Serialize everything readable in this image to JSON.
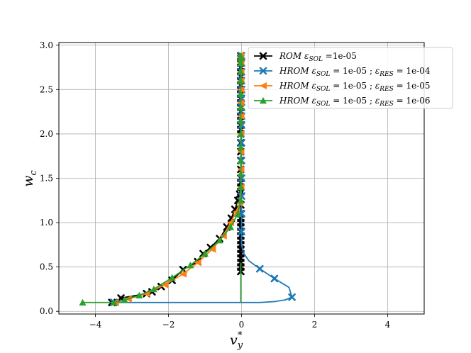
{
  "chart_data": {
    "type": "line",
    "xlabel": "v",
    "xlabel_sub": "y",
    "xlabel_sup": "*",
    "ylabel": "w",
    "ylabel_sub": "c",
    "xlim": [
      -5,
      5
    ],
    "ylim": [
      -0.03,
      3.03
    ],
    "xticks": [
      -4,
      -2,
      0,
      2,
      4
    ],
    "yticks": [
      0.0,
      0.5,
      1.0,
      1.5,
      2.0,
      2.5,
      3.0
    ],
    "xtick_labels": [
      "−4",
      "−2",
      "0",
      "2",
      "4"
    ],
    "ytick_labels": [
      "0.0",
      "0.5",
      "1.0",
      "1.5",
      "2.0",
      "2.5",
      "3.0"
    ],
    "grid": true,
    "legend_position": "top-right",
    "series": [
      {
        "name": "ROM εSOL =1e-05",
        "legend": {
          "model": "ROM",
          "parts": [
            {
              "eps": "SOL",
              "eq": " =1e-05"
            }
          ]
        },
        "color": "#000000",
        "marker": "x",
        "x": [
          -3.55,
          -3.5,
          -3.3,
          -2.6,
          -2.45,
          -2.2,
          -1.9,
          -1.6,
          -1.2,
          -1.05,
          -0.85,
          -0.6,
          -0.4,
          -0.28,
          -0.18,
          -0.1,
          -0.05,
          -0.02,
          -0.02,
          -0.02,
          -0.02,
          -0.02,
          -0.02,
          -0.02,
          -0.02,
          -0.02,
          -0.02,
          -0.02,
          -0.02,
          -0.02,
          -0.02,
          -0.02,
          -0.02,
          -0.02,
          -0.02,
          -0.02,
          -0.02,
          -0.02,
          -0.02,
          -0.02,
          -0.02,
          -0.02,
          -0.02,
          -0.02,
          -0.02,
          -0.02,
          -0.02,
          -0.02,
          -0.02,
          -0.02,
          -0.02,
          -0.02,
          -0.02,
          -0.02,
          -0.02,
          -0.02,
          -0.02,
          -0.02,
          -0.02
        ],
        "y": [
          0.1,
          0.1,
          0.15,
          0.2,
          0.22,
          0.28,
          0.35,
          0.47,
          0.56,
          0.65,
          0.72,
          0.82,
          0.95,
          1.05,
          1.15,
          1.25,
          1.32,
          1.1,
          1.05,
          1.0,
          0.95,
          0.9,
          0.85,
          0.8,
          0.75,
          0.7,
          0.65,
          0.6,
          0.55,
          0.5,
          0.45,
          1.4,
          1.5,
          1.6,
          1.7,
          1.8,
          1.9,
          2.0,
          2.05,
          2.1,
          2.15,
          2.2,
          2.25,
          2.3,
          2.35,
          2.4,
          2.45,
          2.5,
          2.55,
          2.6,
          2.65,
          2.7,
          2.75,
          2.8,
          2.85,
          2.88,
          1.45,
          1.35,
          1.2
        ]
      },
      {
        "name": "HROM εSOL = 1e-05 ; εRES = 1e-04",
        "legend": {
          "model": "HROM",
          "parts": [
            {
              "eps": "SOL",
              "eq": " = 1e-05 ; "
            },
            {
              "eps": "RES",
              "eq": " = 1e-04"
            }
          ]
        },
        "color": "#1f77b4",
        "marker": "x",
        "x": [
          -3.5,
          -3.3,
          -3.0,
          -2.0,
          0.0,
          0.5,
          0.9,
          1.2,
          1.38,
          1.3,
          0.9,
          0.5,
          0.2,
          0.05,
          0.0,
          0.0,
          0.0,
          0.0,
          0.0,
          0.0,
          0.0,
          0.0,
          0.0,
          0.0,
          0.0,
          0.0,
          0.0,
          0.0,
          0.0,
          0.0
        ],
        "y": [
          0.1,
          0.1,
          0.1,
          0.1,
          0.1,
          0.1,
          0.11,
          0.13,
          0.16,
          0.27,
          0.37,
          0.48,
          0.57,
          0.66,
          0.75,
          0.9,
          1.1,
          1.3,
          1.5,
          1.7,
          1.9,
          2.1,
          2.2,
          2.3,
          2.4,
          2.5,
          2.6,
          2.7,
          2.8,
          2.88
        ],
        "markers_idx": [
          0,
          8,
          10,
          11,
          15,
          16,
          17,
          18,
          19,
          20,
          21,
          22,
          23,
          24,
          25,
          26,
          27,
          28,
          29
        ]
      },
      {
        "name": "HROM εSOL = 1e-05 ; εRES = 1e-05",
        "legend": {
          "model": "HROM",
          "parts": [
            {
              "eps": "SOL",
              "eq": " = 1e-05 ; "
            },
            {
              "eps": "RES",
              "eq": " = 1e-05"
            }
          ]
        },
        "color": "#ff7f0e",
        "marker": "<",
        "x": [
          -3.45,
          -3.1,
          -2.6,
          -2.1,
          -1.6,
          -1.2,
          -0.8,
          -0.5,
          -0.3,
          -0.15,
          -0.05,
          -0.02,
          -0.02,
          -0.02,
          -0.02,
          -0.02,
          -0.02,
          -0.02,
          -0.02,
          -0.02,
          -0.02,
          -0.02
        ],
        "y": [
          0.1,
          0.14,
          0.2,
          0.3,
          0.42,
          0.55,
          0.7,
          0.85,
          1.0,
          1.12,
          1.22,
          1.4,
          1.6,
          1.8,
          2.0,
          2.2,
          2.35,
          2.5,
          2.6,
          2.7,
          2.8,
          2.88
        ]
      },
      {
        "name": "HROM εSOL = 1e-05 ; εRES = 1e-06",
        "legend": {
          "model": "HROM",
          "parts": [
            {
              "eps": "SOL",
              "eq": " = 1e-05 ; "
            },
            {
              "eps": "RES",
              "eq": " = 1e-06"
            }
          ]
        },
        "color": "#2ca02c",
        "marker": "^",
        "x": [
          -4.35,
          -3.5,
          -3.2,
          -2.8,
          -2.4,
          -1.9,
          -1.4,
          -1.0,
          -0.6,
          -0.3,
          -0.1,
          -0.02,
          -0.02,
          -0.02,
          -0.02,
          -0.02,
          -0.02,
          -0.02,
          -0.02,
          -0.02,
          -0.02,
          -0.02,
          -0.02,
          -0.02,
          -0.02
        ],
        "y": [
          0.1,
          0.1,
          0.13,
          0.18,
          0.25,
          0.38,
          0.52,
          0.65,
          0.8,
          0.95,
          1.1,
          1.25,
          1.4,
          1.55,
          1.7,
          1.85,
          2.0,
          2.15,
          2.3,
          2.45,
          2.6,
          2.7,
          2.8,
          2.85,
          2.88
        ],
        "extra_line": {
          "x": [
            -0.02,
            -0.02,
            -0.02,
            -0.02
          ],
          "y": [
            0.1,
            0.4,
            0.5,
            0.55
          ]
        }
      }
    ]
  }
}
